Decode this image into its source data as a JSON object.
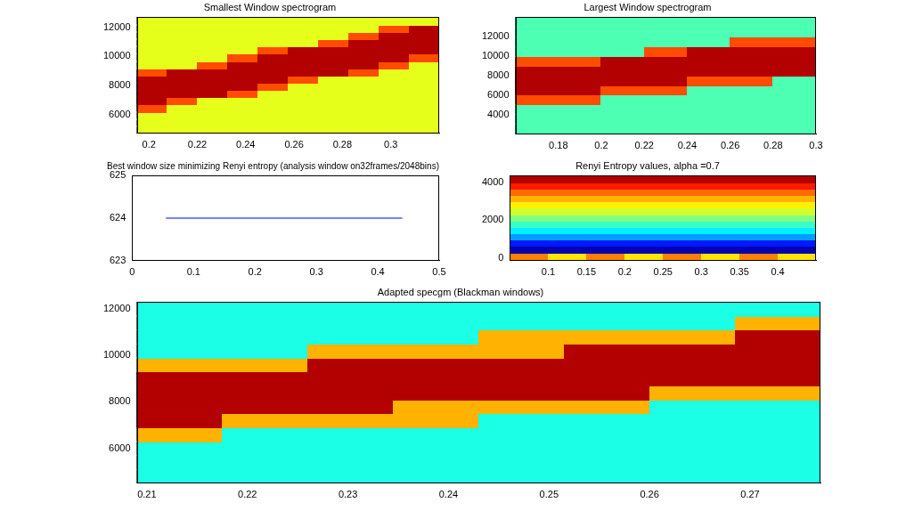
{
  "chart_data": [
    {
      "type": "heatmap",
      "title": "Smallest Window spectrogram",
      "xlim": [
        0.195,
        0.32
      ],
      "xticks": [
        0.2,
        0.22,
        0.24,
        0.26,
        0.28,
        0.3
      ],
      "ylim": [
        4700,
        12700
      ],
      "yticks": [
        6000,
        8000,
        10000,
        12000
      ],
      "grid": false,
      "cells": {
        "x_edges": [
          0.195,
          0.2075,
          0.22,
          0.2325,
          0.245,
          0.2575,
          0.27,
          0.2825,
          0.295,
          0.3075,
          0.32
        ],
        "y_edges": [
          4700,
          5200,
          5700,
          6200,
          6700,
          7200,
          7700,
          8200,
          8700,
          9200,
          9700,
          10200,
          10700,
          11200,
          11700,
          12200,
          12700
        ],
        "z": [
          [
            0.6,
            0.6,
            0.6,
            0.6,
            0.6,
            0.6,
            0.6,
            0.6,
            0.6,
            0.6
          ],
          [
            0.6,
            0.6,
            0.6,
            0.6,
            0.6,
            0.6,
            0.6,
            0.6,
            0.6,
            0.6
          ],
          [
            0.6,
            0.6,
            0.6,
            0.6,
            0.6,
            0.6,
            0.6,
            0.6,
            0.6,
            0.6
          ],
          [
            0.8,
            0.6,
            0.6,
            0.6,
            0.6,
            0.6,
            0.6,
            0.6,
            0.6,
            0.6
          ],
          [
            0.95,
            0.8,
            0.6,
            0.6,
            0.6,
            0.6,
            0.6,
            0.6,
            0.6,
            0.6
          ],
          [
            0.95,
            0.95,
            0.95,
            0.8,
            0.6,
            0.6,
            0.6,
            0.6,
            0.6,
            0.6
          ],
          [
            0.95,
            0.95,
            0.95,
            0.95,
            0.8,
            0.6,
            0.6,
            0.6,
            0.6,
            0.6
          ],
          [
            0.95,
            0.95,
            0.95,
            0.95,
            0.95,
            0.8,
            0.6,
            0.6,
            0.6,
            0.6
          ],
          [
            0.8,
            0.95,
            0.95,
            0.95,
            0.95,
            0.95,
            0.95,
            0.8,
            0.6,
            0.6
          ],
          [
            0.6,
            0.6,
            0.8,
            0.95,
            0.95,
            0.95,
            0.95,
            0.95,
            0.8,
            0.6
          ],
          [
            0.6,
            0.6,
            0.6,
            0.8,
            0.95,
            0.95,
            0.95,
            0.95,
            0.95,
            0.8
          ],
          [
            0.6,
            0.6,
            0.6,
            0.6,
            0.8,
            0.95,
            0.95,
            0.95,
            0.95,
            0.95
          ],
          [
            0.6,
            0.6,
            0.6,
            0.6,
            0.6,
            0.6,
            0.8,
            0.95,
            0.95,
            0.95
          ],
          [
            0.6,
            0.6,
            0.6,
            0.6,
            0.6,
            0.6,
            0.6,
            0.8,
            0.95,
            0.95
          ],
          [
            0.6,
            0.6,
            0.6,
            0.6,
            0.6,
            0.6,
            0.6,
            0.6,
            0.8,
            0.95
          ],
          [
            0.6,
            0.6,
            0.6,
            0.6,
            0.6,
            0.6,
            0.6,
            0.6,
            0.6,
            0.6
          ]
        ]
      }
    },
    {
      "type": "heatmap",
      "title": "Largest Window spectrogram",
      "xlim": [
        0.16,
        0.3
      ],
      "xticks": [
        0.18,
        0.2,
        0.22,
        0.24,
        0.26,
        0.28,
        0.3
      ],
      "ylim": [
        2000,
        14000
      ],
      "yticks": [
        4000,
        6000,
        8000,
        10000,
        12000
      ],
      "grid": false,
      "cells": {
        "x_edges": [
          0.16,
          0.18,
          0.2,
          0.22,
          0.24,
          0.26,
          0.28,
          0.3
        ],
        "y_edges": [
          2000,
          3000,
          4000,
          5000,
          6000,
          7000,
          8000,
          9000,
          10000,
          11000,
          12000,
          13000,
          14000
        ],
        "z": [
          [
            0.45,
            0.45,
            0.45,
            0.45,
            0.45,
            0.45,
            0.45
          ],
          [
            0.45,
            0.45,
            0.45,
            0.45,
            0.45,
            0.45,
            0.45
          ],
          [
            0.45,
            0.45,
            0.45,
            0.45,
            0.45,
            0.45,
            0.45
          ],
          [
            0.8,
            0.8,
            0.45,
            0.45,
            0.45,
            0.45,
            0.45
          ],
          [
            0.95,
            0.95,
            0.8,
            0.8,
            0.45,
            0.45,
            0.45
          ],
          [
            0.95,
            0.95,
            0.95,
            0.95,
            0.8,
            0.8,
            0.45
          ],
          [
            0.95,
            0.95,
            0.95,
            0.95,
            0.95,
            0.95,
            0.95
          ],
          [
            0.8,
            0.8,
            0.95,
            0.95,
            0.95,
            0.95,
            0.95
          ],
          [
            0.45,
            0.45,
            0.45,
            0.8,
            0.95,
            0.95,
            0.95
          ],
          [
            0.45,
            0.45,
            0.45,
            0.45,
            0.45,
            0.8,
            0.8
          ],
          [
            0.45,
            0.45,
            0.45,
            0.45,
            0.45,
            0.45,
            0.45
          ],
          [
            0.45,
            0.45,
            0.45,
            0.45,
            0.45,
            0.45,
            0.45
          ]
        ]
      }
    },
    {
      "type": "line",
      "title": "Best window size minimizing Renyi entropy (analysis window on32frames/2048bins)",
      "x": [
        0.055,
        0.44
      ],
      "series": [
        {
          "color": "#0000ff",
          "values": [
            624,
            624
          ]
        }
      ],
      "xlim": [
        0,
        0.5
      ],
      "xticks": [
        0,
        0.1,
        0.2,
        0.3,
        0.4,
        0.5
      ],
      "ylim": [
        623,
        625
      ],
      "yticks": [
        623,
        624,
        625
      ],
      "grid": false
    },
    {
      "type": "heatmap",
      "title": "Renyi Entropy values, alpha =0.7",
      "xlim": [
        0.05,
        0.45
      ],
      "xticks": [
        0.1,
        0.15,
        0.2,
        0.25,
        0.3,
        0.35,
        0.4
      ],
      "ylim": [
        -150,
        4380
      ],
      "yticks": [
        0,
        2000,
        4000
      ],
      "grid": false,
      "cells": {
        "x_edges": [
          0.05,
          0.1,
          0.15,
          0.2,
          0.25,
          0.3,
          0.35,
          0.4,
          0.45
        ],
        "y_edges": [
          -150,
          300,
          640,
          980,
          1320,
          1660,
          2000,
          2340,
          2680,
          3020,
          3360,
          3700,
          4040,
          4380
        ],
        "z": [
          [
            0.75,
            0.65,
            0.75,
            0.65,
            0.75,
            0.65,
            0.75,
            0.65
          ],
          [
            0.05,
            0.05,
            0.05,
            0.05,
            0.05,
            0.05,
            0.05,
            0.05
          ],
          [
            0.15,
            0.15,
            0.15,
            0.15,
            0.15,
            0.15,
            0.15,
            0.15
          ],
          [
            0.28,
            0.28,
            0.28,
            0.28,
            0.28,
            0.28,
            0.28,
            0.28
          ],
          [
            0.36,
            0.36,
            0.36,
            0.36,
            0.36,
            0.36,
            0.36,
            0.36
          ],
          [
            0.43,
            0.43,
            0.43,
            0.43,
            0.43,
            0.43,
            0.43,
            0.43
          ],
          [
            0.5,
            0.5,
            0.5,
            0.5,
            0.5,
            0.5,
            0.5,
            0.5
          ],
          [
            0.58,
            0.58,
            0.58,
            0.58,
            0.58,
            0.58,
            0.58,
            0.58
          ],
          [
            0.64,
            0.64,
            0.64,
            0.64,
            0.64,
            0.64,
            0.64,
            0.64
          ],
          [
            0.7,
            0.7,
            0.7,
            0.7,
            0.7,
            0.7,
            0.7,
            0.7
          ],
          [
            0.77,
            0.77,
            0.77,
            0.77,
            0.77,
            0.77,
            0.77,
            0.77
          ],
          [
            0.85,
            0.85,
            0.85,
            0.85,
            0.85,
            0.85,
            0.85,
            0.85
          ],
          [
            0.95,
            0.95,
            0.95,
            0.95,
            0.95,
            0.95,
            0.95,
            0.95
          ]
        ]
      }
    },
    {
      "type": "heatmap",
      "title": "Adapted specgm (Blackman windows)",
      "xlim": [
        0.209,
        0.277
      ],
      "xticks": [
        0.21,
        0.22,
        0.23,
        0.24,
        0.25,
        0.26,
        0.27
      ],
      "ylim": [
        4500,
        12300
      ],
      "yticks": [
        6000,
        8000,
        10000,
        12000
      ],
      "grid": false,
      "cells": {
        "x_edges": [
          0.209,
          0.2175,
          0.226,
          0.2345,
          0.243,
          0.2515,
          0.26,
          0.2685,
          0.277
        ],
        "y_edges": [
          4500,
          5100,
          5700,
          6300,
          6900,
          7500,
          8100,
          8700,
          9300,
          9900,
          10500,
          11100,
          11700,
          12300
        ],
        "z": [
          [
            0.4,
            0.4,
            0.4,
            0.4,
            0.4,
            0.4,
            0.4,
            0.4
          ],
          [
            0.4,
            0.4,
            0.4,
            0.4,
            0.4,
            0.4,
            0.4,
            0.4
          ],
          [
            0.4,
            0.4,
            0.4,
            0.4,
            0.4,
            0.4,
            0.4,
            0.4
          ],
          [
            0.7,
            0.4,
            0.4,
            0.4,
            0.4,
            0.4,
            0.4,
            0.4
          ],
          [
            0.95,
            0.7,
            0.7,
            0.7,
            0.4,
            0.4,
            0.4,
            0.4
          ],
          [
            0.95,
            0.95,
            0.95,
            0.7,
            0.7,
            0.7,
            0.4,
            0.4
          ],
          [
            0.95,
            0.95,
            0.95,
            0.95,
            0.95,
            0.95,
            0.7,
            0.7
          ],
          [
            0.95,
            0.95,
            0.95,
            0.95,
            0.95,
            0.95,
            0.95,
            0.95
          ],
          [
            0.7,
            0.7,
            0.95,
            0.95,
            0.95,
            0.95,
            0.95,
            0.95
          ],
          [
            0.4,
            0.4,
            0.7,
            0.7,
            0.7,
            0.95,
            0.95,
            0.95
          ],
          [
            0.4,
            0.4,
            0.4,
            0.4,
            0.7,
            0.7,
            0.7,
            0.95
          ],
          [
            0.4,
            0.4,
            0.4,
            0.4,
            0.4,
            0.4,
            0.4,
            0.7
          ],
          [
            0.4,
            0.4,
            0.4,
            0.4,
            0.4,
            0.4,
            0.4,
            0.4
          ]
        ]
      }
    }
  ]
}
